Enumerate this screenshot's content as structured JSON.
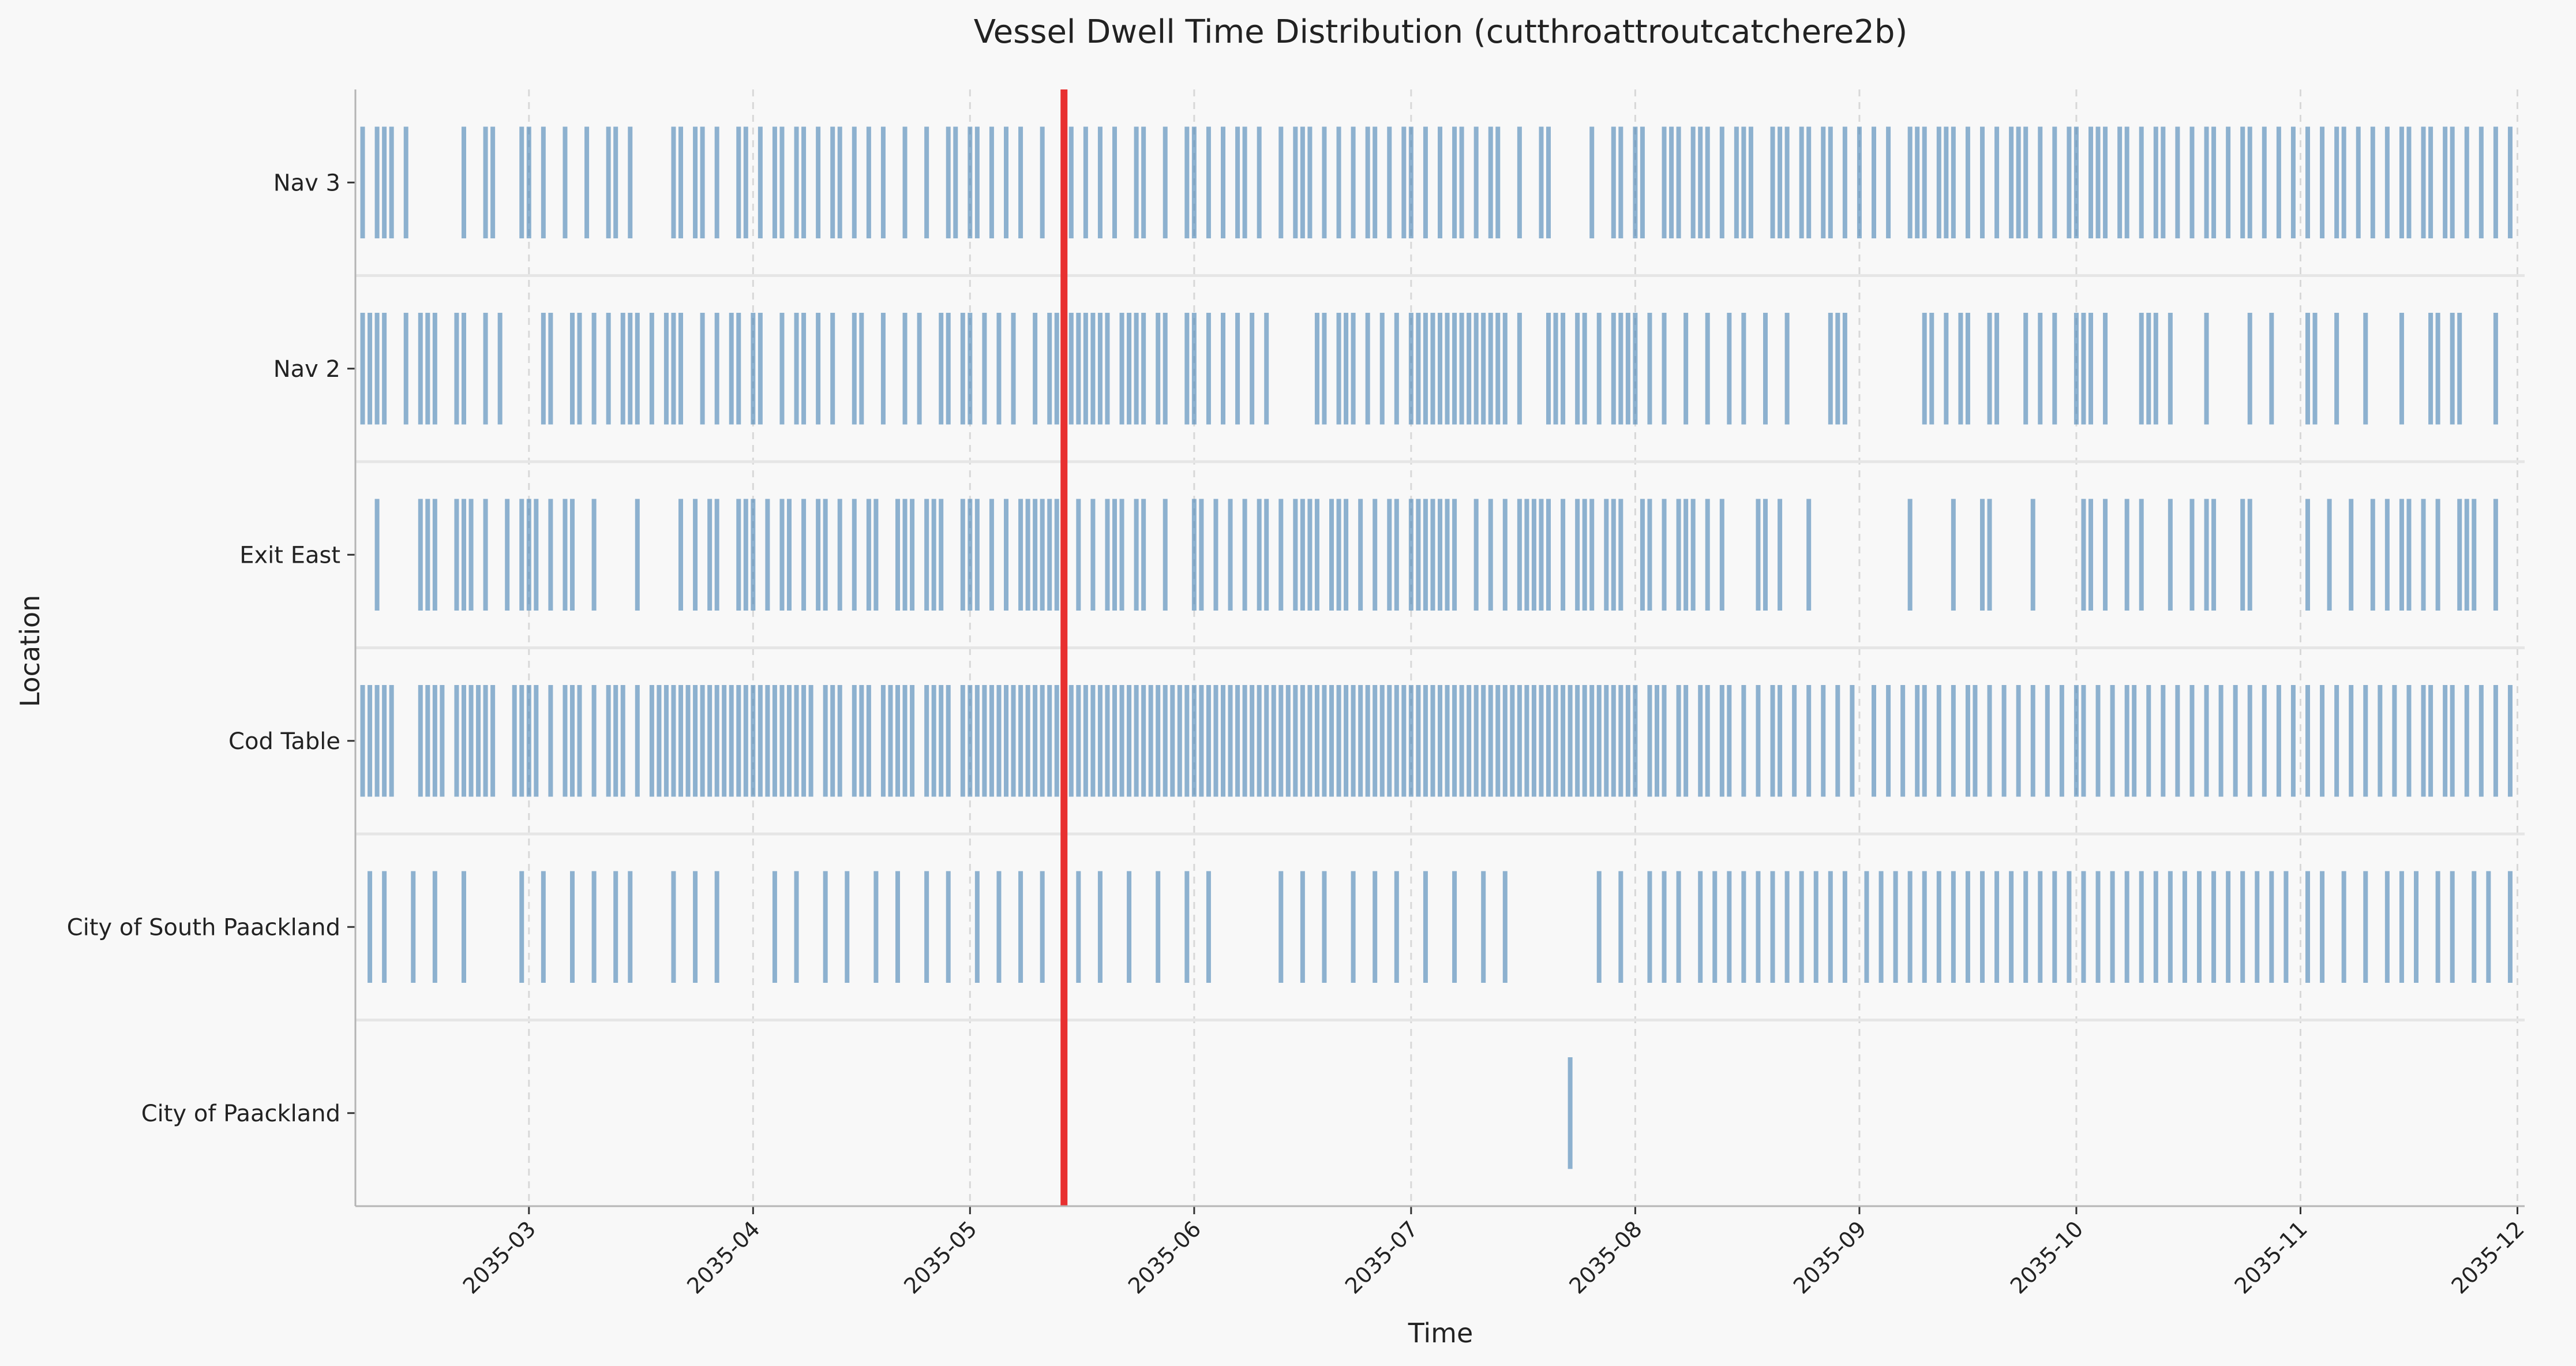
{
  "chart_data": {
    "type": "event-strip",
    "title": "Vessel Dwell Time Distribution (cutthroattroutcatchere2b)",
    "xlabel": "Time",
    "ylabel": "Location",
    "xlim": [
      "2035-02-05",
      "2035-12-02"
    ],
    "x_ticks": [
      "2035-03",
      "2035-04",
      "2035-05",
      "2035-06",
      "2035-07",
      "2035-08",
      "2035-09",
      "2035-10",
      "2035-11",
      "2035-12"
    ],
    "grid": true,
    "event_color": "#4682b4",
    "marker": {
      "date": "2035-05-14",
      "color": "#e83030"
    },
    "categories": [
      "Nav 3",
      "Nav 2",
      "Exit East",
      "Cod Table",
      "City of South Paackland",
      "City of Paackland"
    ],
    "series": [
      {
        "name": "Nav 3",
        "events": [
          "2035-02-06",
          "2035-02-08",
          "2035-02-09",
          "2035-02-10",
          "2035-02-12",
          "2035-02-20",
          "2035-02-23",
          "2035-02-24",
          "2035-02-28",
          "2035-03-01",
          "2035-03-03",
          "2035-03-06",
          "2035-03-09",
          "2035-03-12",
          "2035-03-13",
          "2035-03-15",
          "2035-03-21",
          "2035-03-22",
          "2035-03-24",
          "2035-03-25",
          "2035-03-27",
          "2035-03-30",
          "2035-03-31",
          "2035-04-02",
          "2035-04-04",
          "2035-04-05",
          "2035-04-07",
          "2035-04-08",
          "2035-04-10",
          "2035-04-12",
          "2035-04-13",
          "2035-04-15",
          "2035-04-17",
          "2035-04-19",
          "2035-04-22",
          "2035-04-25",
          "2035-04-28",
          "2035-04-29",
          "2035-05-01",
          "2035-05-02",
          "2035-05-04",
          "2035-05-06",
          "2035-05-08",
          "2035-05-11",
          "2035-05-15",
          "2035-05-17",
          "2035-05-19",
          "2035-05-21",
          "2035-05-24",
          "2035-05-25",
          "2035-05-28",
          "2035-05-31",
          "2035-06-01",
          "2035-06-03",
          "2035-06-05",
          "2035-06-07",
          "2035-06-08",
          "2035-06-10",
          "2035-06-13",
          "2035-06-15",
          "2035-06-16",
          "2035-06-17",
          "2035-06-19",
          "2035-06-21",
          "2035-06-23",
          "2035-06-25",
          "2035-06-26",
          "2035-06-28",
          "2035-06-30",
          "2035-07-01",
          "2035-07-03",
          "2035-07-05",
          "2035-07-07",
          "2035-07-08",
          "2035-07-10",
          "2035-07-12",
          "2035-07-13",
          "2035-07-16",
          "2035-07-19",
          "2035-07-20",
          "2035-07-26",
          "2035-07-29",
          "2035-07-30",
          "2035-08-01",
          "2035-08-02",
          "2035-08-05",
          "2035-08-06",
          "2035-08-07",
          "2035-08-09",
          "2035-08-10",
          "2035-08-11",
          "2035-08-13",
          "2035-08-15",
          "2035-08-16",
          "2035-08-17",
          "2035-08-20",
          "2035-08-21",
          "2035-08-22",
          "2035-08-24",
          "2035-08-25",
          "2035-08-27",
          "2035-08-28",
          "2035-08-30",
          "2035-09-01",
          "2035-09-03",
          "2035-09-05",
          "2035-09-08",
          "2035-09-09",
          "2035-09-10",
          "2035-09-12",
          "2035-09-13",
          "2035-09-14",
          "2035-09-16",
          "2035-09-18",
          "2035-09-20",
          "2035-09-22",
          "2035-09-23",
          "2035-09-24",
          "2035-09-26",
          "2035-09-28",
          "2035-09-30",
          "2035-10-01",
          "2035-10-03",
          "2035-10-04",
          "2035-10-05",
          "2035-10-07",
          "2035-10-08",
          "2035-10-10",
          "2035-10-12",
          "2035-10-13",
          "2035-10-15",
          "2035-10-17",
          "2035-10-19",
          "2035-10-20",
          "2035-10-22",
          "2035-10-24",
          "2035-10-25",
          "2035-10-27",
          "2035-10-29",
          "2035-10-31",
          "2035-11-02",
          "2035-11-04",
          "2035-11-06",
          "2035-11-07",
          "2035-11-09",
          "2035-11-11",
          "2035-11-13",
          "2035-11-15",
          "2035-11-16",
          "2035-11-18",
          "2035-11-19",
          "2035-11-21",
          "2035-11-22",
          "2035-11-24",
          "2035-11-26",
          "2035-11-28",
          "2035-11-30"
        ]
      },
      {
        "name": "Nav 2",
        "events": [
          "2035-02-06",
          "2035-02-07",
          "2035-02-08",
          "2035-02-09",
          "2035-02-12",
          "2035-02-14",
          "2035-02-15",
          "2035-02-16",
          "2035-02-19",
          "2035-02-20",
          "2035-02-23",
          "2035-02-25",
          "2035-03-03",
          "2035-03-04",
          "2035-03-07",
          "2035-03-08",
          "2035-03-10",
          "2035-03-12",
          "2035-03-14",
          "2035-03-15",
          "2035-03-16",
          "2035-03-18",
          "2035-03-20",
          "2035-03-21",
          "2035-03-22",
          "2035-03-25",
          "2035-03-27",
          "2035-03-29",
          "2035-03-30",
          "2035-04-01",
          "2035-04-02",
          "2035-04-05",
          "2035-04-07",
          "2035-04-08",
          "2035-04-10",
          "2035-04-12",
          "2035-04-15",
          "2035-04-16",
          "2035-04-19",
          "2035-04-22",
          "2035-04-24",
          "2035-04-27",
          "2035-04-28",
          "2035-04-30",
          "2035-05-01",
          "2035-05-03",
          "2035-05-05",
          "2035-05-07",
          "2035-05-10",
          "2035-05-12",
          "2035-05-13",
          "2035-05-15",
          "2035-05-16",
          "2035-05-17",
          "2035-05-18",
          "2035-05-19",
          "2035-05-20",
          "2035-05-22",
          "2035-05-23",
          "2035-05-24",
          "2035-05-25",
          "2035-05-27",
          "2035-05-28",
          "2035-05-31",
          "2035-06-01",
          "2035-06-03",
          "2035-06-05",
          "2035-06-07",
          "2035-06-09",
          "2035-06-11",
          "2035-06-18",
          "2035-06-19",
          "2035-06-21",
          "2035-06-22",
          "2035-06-23",
          "2035-06-25",
          "2035-06-27",
          "2035-06-29",
          "2035-07-01",
          "2035-07-02",
          "2035-07-03",
          "2035-07-04",
          "2035-07-05",
          "2035-07-06",
          "2035-07-07",
          "2035-07-08",
          "2035-07-09",
          "2035-07-10",
          "2035-07-11",
          "2035-07-12",
          "2035-07-13",
          "2035-07-14",
          "2035-07-16",
          "2035-07-20",
          "2035-07-21",
          "2035-07-22",
          "2035-07-24",
          "2035-07-25",
          "2035-07-27",
          "2035-07-29",
          "2035-07-30",
          "2035-07-31",
          "2035-08-01",
          "2035-08-03",
          "2035-08-05",
          "2035-08-08",
          "2035-08-11",
          "2035-08-14",
          "2035-08-16",
          "2035-08-19",
          "2035-08-22",
          "2035-08-28",
          "2035-08-29",
          "2035-08-30",
          "2035-09-10",
          "2035-09-11",
          "2035-09-13",
          "2035-09-15",
          "2035-09-16",
          "2035-09-19",
          "2035-09-20",
          "2035-09-24",
          "2035-09-26",
          "2035-09-28",
          "2035-10-01",
          "2035-10-02",
          "2035-10-03",
          "2035-10-05",
          "2035-10-10",
          "2035-10-11",
          "2035-10-12",
          "2035-10-14",
          "2035-10-19",
          "2035-10-25",
          "2035-10-28",
          "2035-11-02",
          "2035-11-03",
          "2035-11-06",
          "2035-11-10",
          "2035-11-15",
          "2035-11-19",
          "2035-11-20",
          "2035-11-22",
          "2035-11-23",
          "2035-11-28"
        ]
      },
      {
        "name": "Exit East",
        "events": [
          "2035-02-08",
          "2035-02-14",
          "2035-02-15",
          "2035-02-16",
          "2035-02-19",
          "2035-02-20",
          "2035-02-21",
          "2035-02-23",
          "2035-02-26",
          "2035-02-28",
          "2035-03-01",
          "2035-03-02",
          "2035-03-04",
          "2035-03-06",
          "2035-03-07",
          "2035-03-10",
          "2035-03-16",
          "2035-03-22",
          "2035-03-24",
          "2035-03-26",
          "2035-03-27",
          "2035-03-30",
          "2035-03-31",
          "2035-04-01",
          "2035-04-03",
          "2035-04-05",
          "2035-04-06",
          "2035-04-08",
          "2035-04-10",
          "2035-04-11",
          "2035-04-13",
          "2035-04-15",
          "2035-04-17",
          "2035-04-18",
          "2035-04-21",
          "2035-04-22",
          "2035-04-23",
          "2035-04-25",
          "2035-04-26",
          "2035-04-27",
          "2035-04-30",
          "2035-05-01",
          "2035-05-02",
          "2035-05-04",
          "2035-05-06",
          "2035-05-08",
          "2035-05-09",
          "2035-05-10",
          "2035-05-11",
          "2035-05-12",
          "2035-05-13",
          "2035-05-16",
          "2035-05-18",
          "2035-05-20",
          "2035-05-21",
          "2035-05-22",
          "2035-05-24",
          "2035-05-25",
          "2035-05-28",
          "2035-06-01",
          "2035-06-02",
          "2035-06-04",
          "2035-06-06",
          "2035-06-08",
          "2035-06-10",
          "2035-06-11",
          "2035-06-13",
          "2035-06-15",
          "2035-06-16",
          "2035-06-17",
          "2035-06-18",
          "2035-06-20",
          "2035-06-21",
          "2035-06-22",
          "2035-06-24",
          "2035-06-26",
          "2035-06-28",
          "2035-06-29",
          "2035-07-01",
          "2035-07-02",
          "2035-07-03",
          "2035-07-04",
          "2035-07-05",
          "2035-07-06",
          "2035-07-07",
          "2035-07-10",
          "2035-07-12",
          "2035-07-14",
          "2035-07-16",
          "2035-07-17",
          "2035-07-18",
          "2035-07-19",
          "2035-07-20",
          "2035-07-22",
          "2035-07-24",
          "2035-07-25",
          "2035-07-26",
          "2035-07-28",
          "2035-07-29",
          "2035-07-30",
          "2035-08-02",
          "2035-08-03",
          "2035-08-05",
          "2035-08-07",
          "2035-08-08",
          "2035-08-09",
          "2035-08-11",
          "2035-08-13",
          "2035-08-18",
          "2035-08-19",
          "2035-08-21",
          "2035-08-25",
          "2035-09-08",
          "2035-09-14",
          "2035-09-18",
          "2035-09-19",
          "2035-09-25",
          "2035-10-02",
          "2035-10-03",
          "2035-10-05",
          "2035-10-08",
          "2035-10-10",
          "2035-10-14",
          "2035-10-17",
          "2035-10-19",
          "2035-10-20",
          "2035-10-24",
          "2035-10-25",
          "2035-11-02",
          "2035-11-05",
          "2035-11-08",
          "2035-11-11",
          "2035-11-13",
          "2035-11-15",
          "2035-11-16",
          "2035-11-18",
          "2035-11-20",
          "2035-11-23",
          "2035-11-24",
          "2035-11-25",
          "2035-11-28"
        ]
      },
      {
        "name": "Cod Table",
        "events": [
          "2035-02-06",
          "2035-02-07",
          "2035-02-08",
          "2035-02-09",
          "2035-02-10",
          "2035-02-14",
          "2035-02-15",
          "2035-02-16",
          "2035-02-17",
          "2035-02-19",
          "2035-02-20",
          "2035-02-21",
          "2035-02-22",
          "2035-02-23",
          "2035-02-24",
          "2035-02-27",
          "2035-02-28",
          "2035-03-01",
          "2035-03-02",
          "2035-03-04",
          "2035-03-06",
          "2035-03-07",
          "2035-03-08",
          "2035-03-10",
          "2035-03-12",
          "2035-03-13",
          "2035-03-14",
          "2035-03-16",
          "2035-03-18",
          "2035-03-19",
          "2035-03-20",
          "2035-03-21",
          "2035-03-22",
          "2035-03-23",
          "2035-03-24",
          "2035-03-25",
          "2035-03-26",
          "2035-03-27",
          "2035-03-28",
          "2035-03-29",
          "2035-03-30",
          "2035-03-31",
          "2035-04-01",
          "2035-04-02",
          "2035-04-03",
          "2035-04-04",
          "2035-04-05",
          "2035-04-06",
          "2035-04-07",
          "2035-04-08",
          "2035-04-09",
          "2035-04-11",
          "2035-04-12",
          "2035-04-13",
          "2035-04-15",
          "2035-04-16",
          "2035-04-17",
          "2035-04-19",
          "2035-04-20",
          "2035-04-21",
          "2035-04-22",
          "2035-04-23",
          "2035-04-25",
          "2035-04-26",
          "2035-04-27",
          "2035-04-28",
          "2035-04-30",
          "2035-05-01",
          "2035-05-02",
          "2035-05-03",
          "2035-05-04",
          "2035-05-05",
          "2035-05-06",
          "2035-05-07",
          "2035-05-08",
          "2035-05-09",
          "2035-05-10",
          "2035-05-11",
          "2035-05-12",
          "2035-05-13",
          "2035-05-15",
          "2035-05-16",
          "2035-05-17",
          "2035-05-18",
          "2035-05-19",
          "2035-05-20",
          "2035-05-21",
          "2035-05-22",
          "2035-05-23",
          "2035-05-24",
          "2035-05-25",
          "2035-05-26",
          "2035-05-27",
          "2035-05-28",
          "2035-05-29",
          "2035-05-30",
          "2035-05-31",
          "2035-06-01",
          "2035-06-02",
          "2035-06-03",
          "2035-06-04",
          "2035-06-05",
          "2035-06-06",
          "2035-06-07",
          "2035-06-08",
          "2035-06-09",
          "2035-06-10",
          "2035-06-11",
          "2035-06-12",
          "2035-06-13",
          "2035-06-14",
          "2035-06-15",
          "2035-06-16",
          "2035-06-17",
          "2035-06-18",
          "2035-06-19",
          "2035-06-20",
          "2035-06-21",
          "2035-06-22",
          "2035-06-23",
          "2035-06-24",
          "2035-06-25",
          "2035-06-26",
          "2035-06-27",
          "2035-06-28",
          "2035-06-29",
          "2035-06-30",
          "2035-07-01",
          "2035-07-02",
          "2035-07-03",
          "2035-07-04",
          "2035-07-05",
          "2035-07-06",
          "2035-07-07",
          "2035-07-08",
          "2035-07-09",
          "2035-07-10",
          "2035-07-11",
          "2035-07-12",
          "2035-07-13",
          "2035-07-14",
          "2035-07-15",
          "2035-07-16",
          "2035-07-17",
          "2035-07-18",
          "2035-07-19",
          "2035-07-20",
          "2035-07-21",
          "2035-07-22",
          "2035-07-23",
          "2035-07-24",
          "2035-07-25",
          "2035-07-26",
          "2035-07-27",
          "2035-07-28",
          "2035-07-29",
          "2035-07-30",
          "2035-07-31",
          "2035-08-01",
          "2035-08-03",
          "2035-08-04",
          "2035-08-05",
          "2035-08-07",
          "2035-08-08",
          "2035-08-10",
          "2035-08-11",
          "2035-08-13",
          "2035-08-14",
          "2035-08-16",
          "2035-08-18",
          "2035-08-20",
          "2035-08-21",
          "2035-08-23",
          "2035-08-25",
          "2035-08-27",
          "2035-08-29",
          "2035-08-31",
          "2035-09-03",
          "2035-09-05",
          "2035-09-07",
          "2035-09-09",
          "2035-09-10",
          "2035-09-12",
          "2035-09-14",
          "2035-09-16",
          "2035-09-17",
          "2035-09-19",
          "2035-09-21",
          "2035-09-23",
          "2035-09-25",
          "2035-09-27",
          "2035-09-29",
          "2035-10-01",
          "2035-10-02",
          "2035-10-04",
          "2035-10-06",
          "2035-10-08",
          "2035-10-09",
          "2035-10-11",
          "2035-10-13",
          "2035-10-15",
          "2035-10-17",
          "2035-10-19",
          "2035-10-21",
          "2035-10-23",
          "2035-10-25",
          "2035-10-27",
          "2035-10-29",
          "2035-10-31",
          "2035-11-02",
          "2035-11-04",
          "2035-11-06",
          "2035-11-08",
          "2035-11-10",
          "2035-11-12",
          "2035-11-14",
          "2035-11-16",
          "2035-11-18",
          "2035-11-19",
          "2035-11-21",
          "2035-11-22",
          "2035-11-24",
          "2035-11-26",
          "2035-11-28",
          "2035-11-30"
        ]
      },
      {
        "name": "City of South Paackland",
        "events": [
          "2035-02-07",
          "2035-02-09",
          "2035-02-13",
          "2035-02-16",
          "2035-02-20",
          "2035-02-28",
          "2035-03-03",
          "2035-03-07",
          "2035-03-10",
          "2035-03-13",
          "2035-03-15",
          "2035-03-21",
          "2035-03-24",
          "2035-03-27",
          "2035-04-04",
          "2035-04-07",
          "2035-04-11",
          "2035-04-14",
          "2035-04-18",
          "2035-04-21",
          "2035-04-25",
          "2035-04-28",
          "2035-05-02",
          "2035-05-05",
          "2035-05-08",
          "2035-05-11",
          "2035-05-16",
          "2035-05-19",
          "2035-05-23",
          "2035-05-27",
          "2035-05-31",
          "2035-06-03",
          "2035-06-13",
          "2035-06-16",
          "2035-06-19",
          "2035-06-23",
          "2035-06-26",
          "2035-06-29",
          "2035-07-03",
          "2035-07-07",
          "2035-07-11",
          "2035-07-14",
          "2035-07-27",
          "2035-07-30",
          "2035-08-03",
          "2035-08-05",
          "2035-08-07",
          "2035-08-10",
          "2035-08-12",
          "2035-08-14",
          "2035-08-16",
          "2035-08-18",
          "2035-08-20",
          "2035-08-22",
          "2035-08-24",
          "2035-08-26",
          "2035-08-28",
          "2035-08-30",
          "2035-09-02",
          "2035-09-04",
          "2035-09-06",
          "2035-09-08",
          "2035-09-10",
          "2035-09-12",
          "2035-09-14",
          "2035-09-16",
          "2035-09-18",
          "2035-09-20",
          "2035-09-22",
          "2035-09-24",
          "2035-09-26",
          "2035-09-28",
          "2035-09-30",
          "2035-10-02",
          "2035-10-04",
          "2035-10-06",
          "2035-10-08",
          "2035-10-10",
          "2035-10-12",
          "2035-10-14",
          "2035-10-16",
          "2035-10-18",
          "2035-10-20",
          "2035-10-22",
          "2035-10-24",
          "2035-10-26",
          "2035-10-28",
          "2035-10-30",
          "2035-11-02",
          "2035-11-04",
          "2035-11-07",
          "2035-11-10",
          "2035-11-13",
          "2035-11-15",
          "2035-11-17",
          "2035-11-20",
          "2035-11-22",
          "2035-11-25",
          "2035-11-27",
          "2035-11-30"
        ]
      },
      {
        "name": "City of Paackland",
        "events": [
          "2035-07-23"
        ]
      }
    ]
  }
}
